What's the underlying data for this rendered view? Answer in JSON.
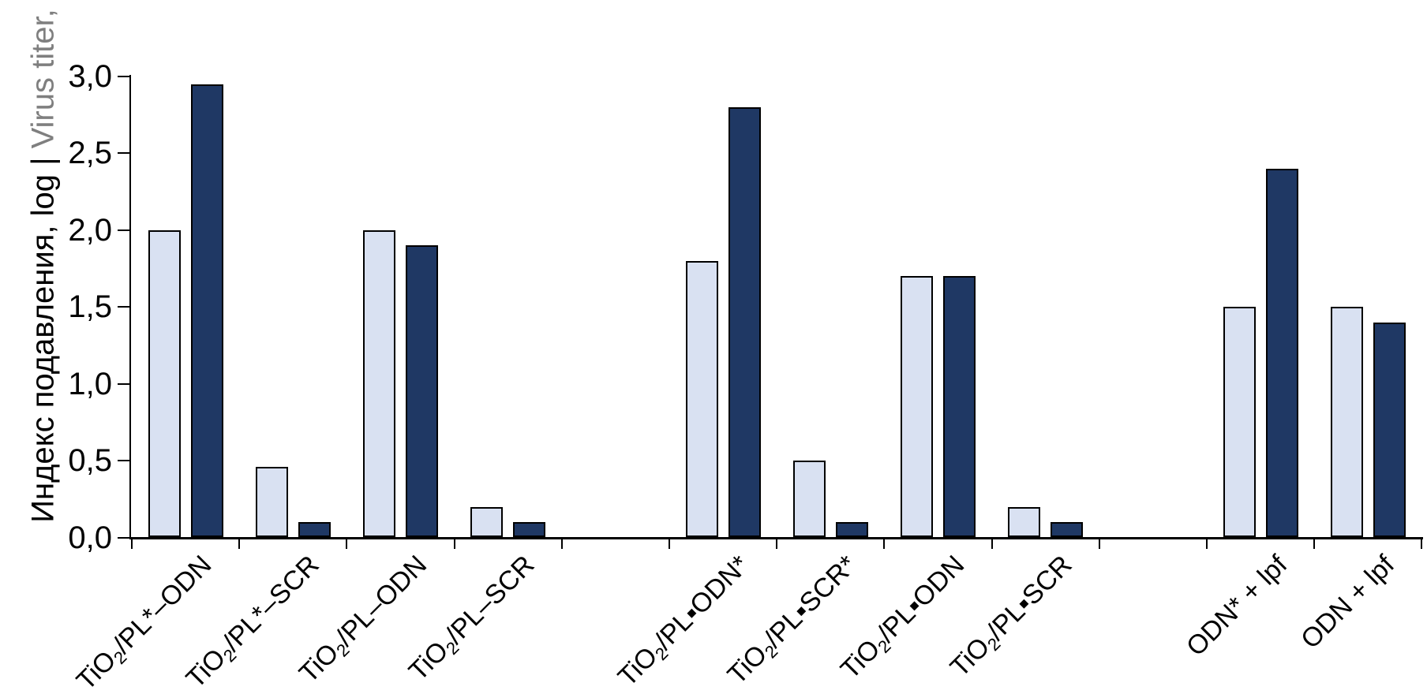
{
  "y_axis": {
    "title_black": "Индекс подавления, log",
    "title_separator": " | ",
    "title_gray": "Virus titer, log",
    "tick_labels": [
      "0,0",
      "0,5",
      "1,0",
      "1,5",
      "2,0",
      "2,5",
      "3,0"
    ],
    "tick_values": [
      0,
      0.5,
      1.0,
      1.5,
      2.0,
      2.5,
      3.0
    ]
  },
  "colors": {
    "light_series": "#D9E1F2",
    "dark_series": "#1F3864",
    "bar_border": "#000000",
    "axis": "#000000",
    "gray_axis_text": "#7F7F7F"
  },
  "chart_data": {
    "type": "bar",
    "title": "",
    "xlabel": "",
    "ylabel": "Индекс подавления, log | Virus titer, log",
    "ylim": [
      0,
      3.0
    ],
    "ytick_step": 0.5,
    "decimal_separator": ",",
    "grid": false,
    "legend": "none",
    "categories": [
      "TiO₂/PL*–ODN",
      "TiO₂/PL*–SCR",
      "TiO₂/PL–ODN",
      "TiO₂/PL–SCR",
      "TiO₂/PL▪ODN*",
      "TiO₂/PL▪SCR*",
      "TiO₂/PL▪ODN",
      "TiO₂/PL▪SCR",
      "ODN* + lpf",
      "ODN + lpf"
    ],
    "category_segments": [
      [
        {
          "t": "TiO"
        },
        {
          "t": "2",
          "sub": true
        },
        {
          "t": "/PL*–ODN"
        }
      ],
      [
        {
          "t": "TiO"
        },
        {
          "t": "2",
          "sub": true
        },
        {
          "t": "/PL*–SCR"
        }
      ],
      [
        {
          "t": "TiO"
        },
        {
          "t": "2",
          "sub": true
        },
        {
          "t": "/PL–ODN"
        }
      ],
      [
        {
          "t": "TiO"
        },
        {
          "t": "2",
          "sub": true
        },
        {
          "t": "/PL–SCR"
        }
      ],
      [
        {
          "t": "TiO"
        },
        {
          "t": "2",
          "sub": true
        },
        {
          "t": "/PL▪ODN*"
        }
      ],
      [
        {
          "t": "TiO"
        },
        {
          "t": "2",
          "sub": true
        },
        {
          "t": "/PL▪SCR*"
        }
      ],
      [
        {
          "t": "TiO"
        },
        {
          "t": "2",
          "sub": true
        },
        {
          "t": "/PL▪ODN"
        }
      ],
      [
        {
          "t": "TiO"
        },
        {
          "t": "2",
          "sub": true
        },
        {
          "t": "/PL▪SCR"
        }
      ],
      [
        {
          "t": "ODN* + lpf"
        }
      ],
      [
        {
          "t": "ODN + lpf"
        }
      ]
    ],
    "slots": [
      0,
      1,
      2,
      3,
      5,
      6,
      7,
      8,
      10,
      11
    ],
    "total_slots": 12,
    "series": [
      {
        "name": "light-blue-bars",
        "color": "#D9E1F2",
        "values": [
          2.0,
          0.46,
          2.0,
          0.2,
          1.8,
          0.5,
          1.7,
          0.2,
          1.5,
          1.5
        ]
      },
      {
        "name": "dark-navy-bars",
        "color": "#1F3864",
        "values": [
          2.95,
          0.1,
          1.9,
          0.1,
          2.8,
          0.1,
          1.7,
          0.1,
          2.4,
          1.4
        ]
      }
    ]
  }
}
